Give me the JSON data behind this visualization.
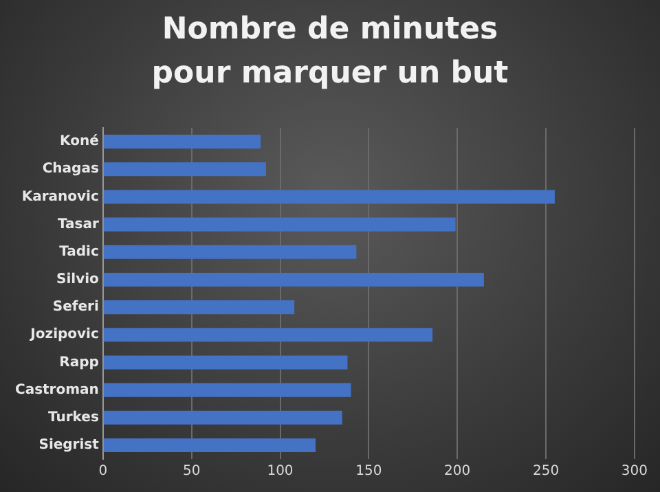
{
  "chart_data": {
    "type": "bar",
    "orientation": "horizontal",
    "title": "Nombre de minutes pour marquer un but",
    "categories": [
      "Koné",
      "Chagas",
      "Karanovic",
      "Tasar",
      "Tadic",
      "Silvio",
      "Seferi",
      "Jozipovic",
      "Rapp",
      "Castroman",
      "Turkes",
      "Siegrist"
    ],
    "values": [
      89,
      92,
      255,
      199,
      143,
      215,
      108,
      186,
      138,
      140,
      135,
      120
    ],
    "color": "#4472c4",
    "xlim": [
      0,
      300
    ],
    "xticks": [
      0,
      50,
      100,
      150,
      200,
      250,
      300
    ],
    "grid": "x",
    "legend": false
  }
}
